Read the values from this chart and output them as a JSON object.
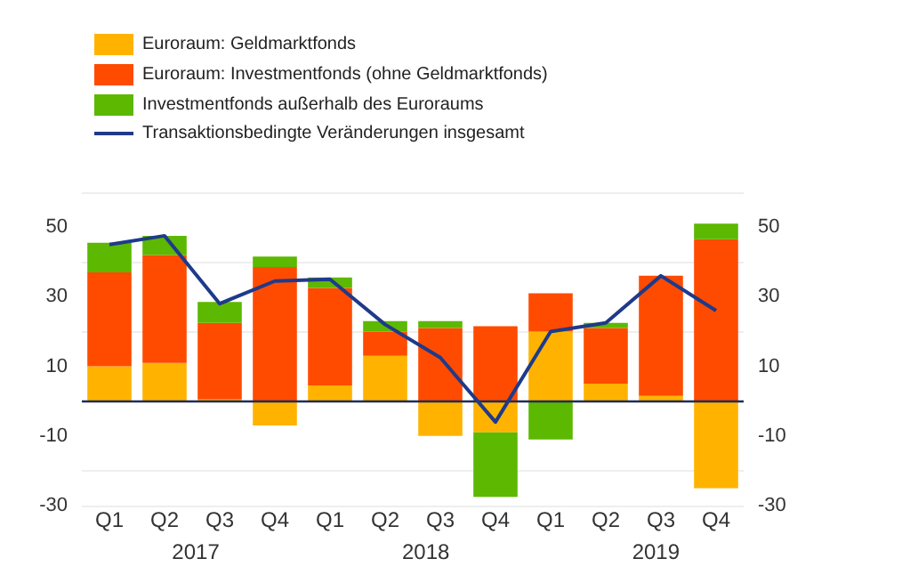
{
  "chart_data": {
    "type": "bar",
    "stacked": true,
    "categories": [
      "Q1",
      "Q2",
      "Q3",
      "Q4",
      "Q1",
      "Q2",
      "Q3",
      "Q4",
      "Q1",
      "Q2",
      "Q3",
      "Q4"
    ],
    "series": [
      {
        "name": "Euroraum: Geldmarktfonds",
        "color": "#ffb300",
        "values": [
          10,
          11,
          0.5,
          -7,
          4.5,
          13,
          -10,
          -9,
          20,
          5,
          1.5,
          -25
        ]
      },
      {
        "name": "Euroraum: Investmentfonds (ohne Geldmarktfonds)",
        "color": "#ff4b00",
        "values": [
          27,
          31,
          22,
          38.5,
          28,
          7,
          21,
          21.5,
          11,
          16,
          34.5,
          46.5
        ]
      },
      {
        "name": "Investmentfonds außerhalb des Euroraums",
        "color": "#5cb800",
        "values": [
          8.5,
          5.5,
          6,
          3,
          3,
          3,
          2,
          -18.5,
          -11,
          1.5,
          null,
          4.5
        ]
      },
      {
        "name": "Transaktionsbedingte Veränderungen insgesamt",
        "type": "line",
        "color": "#1f3a8a",
        "marker": "none",
        "values": [
          45,
          47.5,
          28,
          34.5,
          35,
          22,
          12.5,
          -6,
          20,
          22.5,
          36,
          26
        ]
      }
    ],
    "annotations": [
      "2017",
      "2018",
      "2019"
    ],
    "ylim": [
      -30,
      60
    ],
    "yticks": [
      -30,
      -10,
      10,
      30,
      50
    ],
    "y2lim": [
      -30,
      60
    ],
    "y2ticks": [
      -30,
      -10,
      10,
      30,
      50
    ],
    "ref_lines": [
      {
        "axis": "y",
        "value": 0,
        "color": "#1f2d5a"
      }
    ],
    "grid": "y",
    "legend": "top left"
  }
}
